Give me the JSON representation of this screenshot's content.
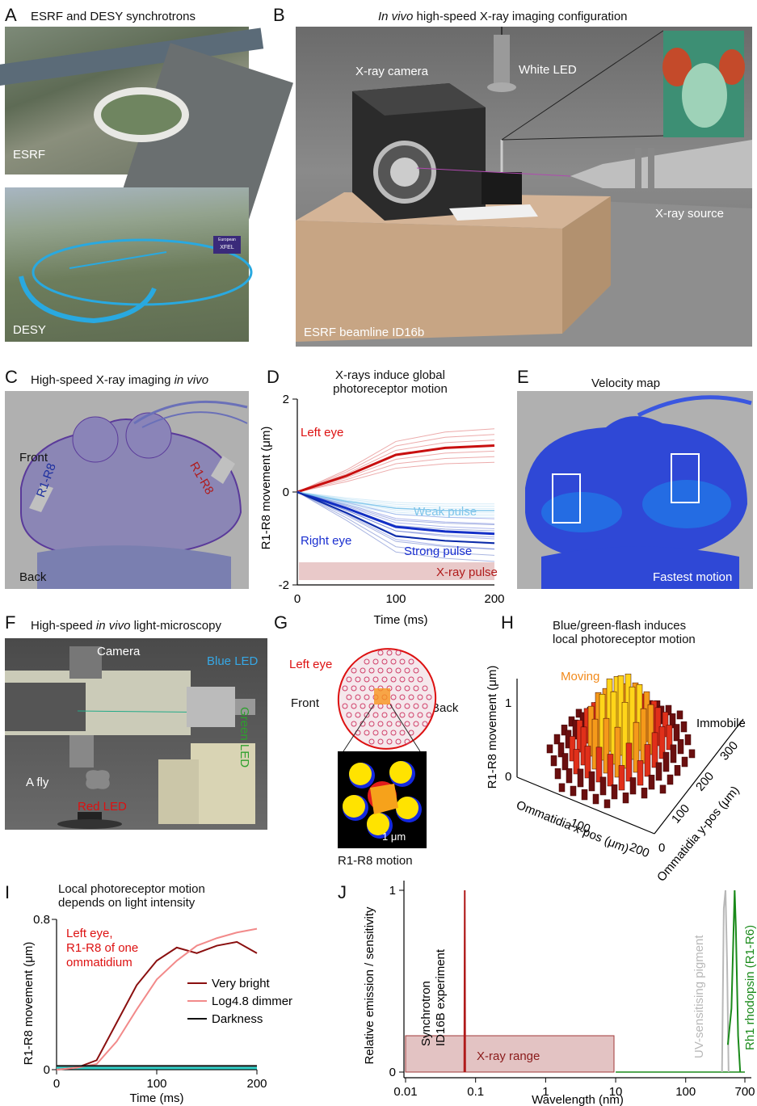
{
  "panels": {
    "A": {
      "letter": "A",
      "title": "ESRF and DESY synchrotrons",
      "photo1_label": "ESRF",
      "photo2_label": "DESY",
      "xfel_badge": "XFEL",
      "xfel_small": "European"
    },
    "B": {
      "letter": "B",
      "title_italic": "In vivo",
      "title_rest": " high-speed X-ray imaging configuration",
      "camera": "X-ray camera",
      "led": "White LED",
      "source": "X-ray source",
      "beamline": "ESRF beamline ID16b"
    },
    "C": {
      "letter": "C",
      "title_pre": "High-speed X-ray imaging ",
      "title_italic": "in vivo",
      "front": "Front",
      "back": "Back",
      "r1": "R1-R8",
      "r2": "R1-R8"
    },
    "D": {
      "letter": "D",
      "title1": "X-rays induce global",
      "title2": "photoreceptor motion",
      "left_eye": "Left eye",
      "right_eye": "Right eye",
      "weak": "Weak pulse",
      "strong": "Strong pulse",
      "xray_pulse": "X-ray pulse",
      "ylabel": "R1-R8 movement (μm)",
      "xlabel": "Time (ms)",
      "yticks": [
        "2",
        "0",
        "-2"
      ],
      "xticks": [
        "0",
        "100",
        "200"
      ]
    },
    "E": {
      "letter": "E",
      "title": "Velocity map",
      "fastest": "Fastest motion"
    },
    "F": {
      "letter": "F",
      "title_pre": "High-speed ",
      "title_italic": "in vivo",
      "title_post": " light-microscopy",
      "camera": "Camera",
      "blue_led": "Blue LED",
      "green_led": "Green LED",
      "fly": "A fly",
      "red_led": "Red LED"
    },
    "G": {
      "letter": "G",
      "left_eye": "Left eye",
      "front": "Front",
      "back": "Back",
      "scale": "1 μm",
      "caption": "R1-R8 motion"
    },
    "H": {
      "letter": "H",
      "title1": "Blue/green-flash induces",
      "title2": "local photoreceptor motion",
      "moving": "Moving",
      "immobile": "Immobile",
      "zlabel": "R1-R8 movement (μm)",
      "xlabel": "Ommatidia x-pos (μm)",
      "ylabel": "Ommatidia y-pos (μm)",
      "zticks": [
        "0",
        "1"
      ],
      "xticks": [
        "0",
        "100",
        "200"
      ],
      "yticks": [
        "0",
        "100",
        "200",
        "300"
      ]
    },
    "I": {
      "letter": "I",
      "title1": "Local photoreceptor motion",
      "title2": "depends on light intensity",
      "note1": "Left eye,",
      "note2": "R1-R8 of one",
      "note3": "ommatidium",
      "legend": [
        "Very bright",
        "Log4.8 dimmer",
        "Darkness"
      ],
      "ylabel": "R1-R8 movement (μm)",
      "xlabel": "Time (ms)",
      "yticks": [
        "0.8",
        "0"
      ],
      "xticks": [
        "0",
        "100",
        "200"
      ]
    },
    "J": {
      "letter": "J",
      "ylabel": "Relative emission / sensitivity",
      "xlabel": "Wavelength (nm)",
      "sync1": "Synchrotron",
      "sync2": "ID16B experiment",
      "xray_range": "X-ray range",
      "uv": "UV-sensitising pigment",
      "rh1": "Rh1 rhodopsin (R1-R6)",
      "yticks": [
        "1",
        "0"
      ],
      "xticks": [
        "0.01",
        "0.1",
        "1",
        "10",
        "100",
        "700"
      ]
    }
  },
  "chart_data": [
    {
      "type": "line",
      "panel": "D",
      "title": "X-rays induce global photoreceptor motion",
      "xlabel": "Time (ms)",
      "ylabel": "R1-R8 movement (μm)",
      "xlim": [
        0,
        200
      ],
      "ylim": [
        -2,
        2
      ],
      "series": [
        {
          "name": "Left eye",
          "x": [
            0,
            50,
            100,
            150,
            200
          ],
          "values": [
            0,
            0.35,
            0.8,
            0.95,
            1.0
          ]
        },
        {
          "name": "Right eye",
          "x": [
            0,
            50,
            100,
            150,
            200
          ],
          "values": [
            0,
            -0.35,
            -0.75,
            -0.85,
            -0.9
          ]
        },
        {
          "name": "Weak pulse",
          "x": [
            0,
            50,
            100,
            150,
            200
          ],
          "values": [
            0,
            -0.2,
            -0.35,
            -0.4,
            -0.4
          ]
        },
        {
          "name": "Strong pulse",
          "x": [
            0,
            50,
            100,
            150,
            200
          ],
          "values": [
            0,
            -0.45,
            -0.95,
            -1.05,
            -1.1
          ]
        }
      ]
    },
    {
      "type": "line",
      "panel": "I",
      "title": "Local photoreceptor motion depends on light intensity",
      "xlabel": "Time (ms)",
      "ylabel": "R1-R8 movement (μm)",
      "xlim": [
        0,
        200
      ],
      "ylim": [
        0,
        0.8
      ],
      "series": [
        {
          "name": "Very bright",
          "x": [
            0,
            20,
            40,
            60,
            80,
            100,
            120,
            140,
            160,
            180,
            200
          ],
          "values": [
            0,
            0.01,
            0.05,
            0.25,
            0.45,
            0.58,
            0.65,
            0.62,
            0.66,
            0.68,
            0.62
          ]
        },
        {
          "name": "Log4.8 dimmer",
          "x": [
            0,
            20,
            40,
            60,
            80,
            100,
            120,
            140,
            160,
            180,
            200
          ],
          "values": [
            0,
            0.01,
            0.03,
            0.15,
            0.32,
            0.48,
            0.58,
            0.66,
            0.7,
            0.73,
            0.75
          ]
        },
        {
          "name": "Darkness",
          "x": [
            0,
            20,
            40,
            60,
            80,
            100,
            120,
            140,
            160,
            180,
            200
          ],
          "values": [
            0.02,
            0.02,
            0.02,
            0.02,
            0.02,
            0.02,
            0.02,
            0.02,
            0.02,
            0.02,
            0.02
          ]
        }
      ]
    },
    {
      "type": "line",
      "panel": "J",
      "xlabel": "Wavelength (nm)",
      "ylabel": "Relative emission / sensitivity",
      "xscale": "log",
      "xlim": [
        0.01,
        700
      ],
      "ylim": [
        0,
        1
      ],
      "series": [
        {
          "name": "Synchrotron ID16B experiment",
          "x": [
            0.069,
            0.07,
            0.071
          ],
          "values": [
            0,
            1,
            0
          ]
        },
        {
          "name": "UV-sensitising pigment",
          "x": [
            330,
            350,
            370,
            390,
            410
          ],
          "values": [
            0,
            0.9,
            1.0,
            0.6,
            0
          ]
        },
        {
          "name": "Rh1 rhodopsin (R1-R6)",
          "x": [
            400,
            450,
            480,
            500,
            520,
            560,
            600
          ],
          "values": [
            0.15,
            0.35,
            0.75,
            1.0,
            0.8,
            0.2,
            0
          ]
        }
      ]
    }
  ]
}
